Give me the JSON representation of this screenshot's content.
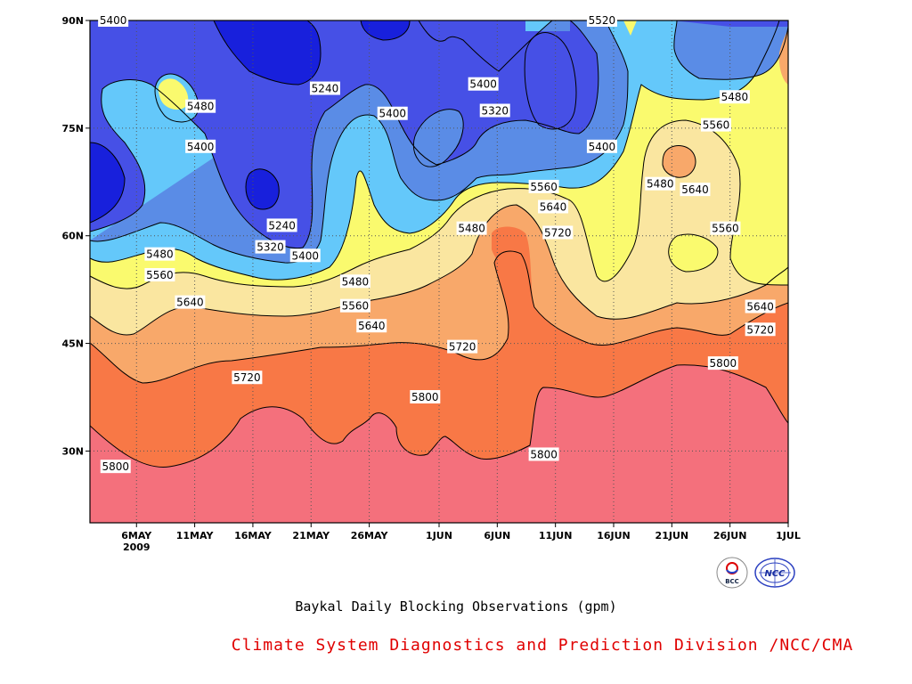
{
  "chart_data": {
    "type": "heatmap",
    "subtype": "filled contour (latitude-time section)",
    "title": "Baykal Daily Blocking Observations (gpm)",
    "xlabel": "",
    "ylabel": "",
    "x_ticks": [
      "6MAY",
      "11MAY",
      "16MAY",
      "21MAY",
      "26MAY",
      "1JUN",
      "6JUN",
      "11JUN",
      "16JUN",
      "21JUN",
      "26JUN",
      "1JUL"
    ],
    "x_year_label": "2009",
    "x_range": [
      "2009-05-02",
      "2009-07-01"
    ],
    "y_ticks": [
      "30N",
      "45N",
      "60N",
      "75N",
      "90N"
    ],
    "y_range_deg": [
      20,
      90
    ],
    "contour_levels": [
      5240,
      5320,
      5400,
      5480,
      5560,
      5640,
      5720,
      5800
    ],
    "contour_line_color": "#000000",
    "fill_colors": {
      "below_5240": "#1820dc",
      "5240_5320": "#4650e6",
      "5320_5400": "#5a8ce6",
      "5400_5480": "#64c8fa",
      "5480_5560": "#fafa6e",
      "5560_5640": "#fae6a0",
      "5640_5720": "#f8a86a",
      "5720_5800": "#f87846",
      "above_5800": "#f4707c"
    },
    "contour_labels": [
      {
        "text": "5400",
        "day": 4.0,
        "lat": 90.0
      },
      {
        "text": "5480",
        "day": 11.5,
        "lat": 78.0
      },
      {
        "text": "5400",
        "day": 11.5,
        "lat": 72.4
      },
      {
        "text": "5240",
        "day": 22.2,
        "lat": 80.5
      },
      {
        "text": "5240",
        "day": 18.5,
        "lat": 61.4
      },
      {
        "text": "5320",
        "day": 17.5,
        "lat": 58.4
      },
      {
        "text": "5400",
        "day": 20.5,
        "lat": 57.2
      },
      {
        "text": "5480",
        "day": 8.0,
        "lat": 57.4
      },
      {
        "text": "5560",
        "day": 8.0,
        "lat": 54.5
      },
      {
        "text": "5640",
        "day": 10.6,
        "lat": 50.7
      },
      {
        "text": "5480",
        "day": 24.8,
        "lat": 53.6
      },
      {
        "text": "5560",
        "day": 24.8,
        "lat": 50.2
      },
      {
        "text": "5640",
        "day": 26.2,
        "lat": 47.4
      },
      {
        "text": "5720",
        "day": 15.5,
        "lat": 40.2
      },
      {
        "text": "5400",
        "day": 28.0,
        "lat": 77.0
      },
      {
        "text": "5400",
        "day": 35.8,
        "lat": 81.1
      },
      {
        "text": "5320",
        "day": 36.8,
        "lat": 77.4
      },
      {
        "text": "5480",
        "day": 34.8,
        "lat": 61.0
      },
      {
        "text": "5720",
        "day": 34.0,
        "lat": 44.5
      },
      {
        "text": "5800",
        "day": 30.8,
        "lat": 37.5
      },
      {
        "text": "5800",
        "day": 41.0,
        "lat": 29.5
      },
      {
        "text": "5560",
        "day": 41.0,
        "lat": 66.8
      },
      {
        "text": "5640",
        "day": 41.8,
        "lat": 64.0
      },
      {
        "text": "5720",
        "day": 42.2,
        "lat": 60.4
      },
      {
        "text": "5520",
        "day": 46.0,
        "lat": 90.0
      },
      {
        "text": "5400",
        "day": 46.0,
        "lat": 72.4
      },
      {
        "text": "5480",
        "day": 51.0,
        "lat": 67.2
      },
      {
        "text": "5480",
        "day": 57.4,
        "lat": 79.3
      },
      {
        "text": "5560",
        "day": 55.8,
        "lat": 75.4
      },
      {
        "text": "5640",
        "day": 54.0,
        "lat": 66.4
      },
      {
        "text": "5560",
        "day": 56.6,
        "lat": 61.0
      },
      {
        "text": "5640",
        "day": 59.6,
        "lat": 50.1
      },
      {
        "text": "5720",
        "day": 59.6,
        "lat": 46.9
      },
      {
        "text": "5800",
        "day": 56.4,
        "lat": 42.2
      },
      {
        "text": "5800",
        "day": 4.2,
        "lat": 27.8
      }
    ]
  },
  "footer": {
    "caption": "Baykal Daily Blocking Observations (gpm)",
    "credit": "Climate System Diagnostics and Prediction Division /NCC/CMA",
    "credit_color": "#e00000"
  },
  "logos": {
    "bcc_logo_text": "BCC",
    "ncc_logo_text": "NCC"
  }
}
